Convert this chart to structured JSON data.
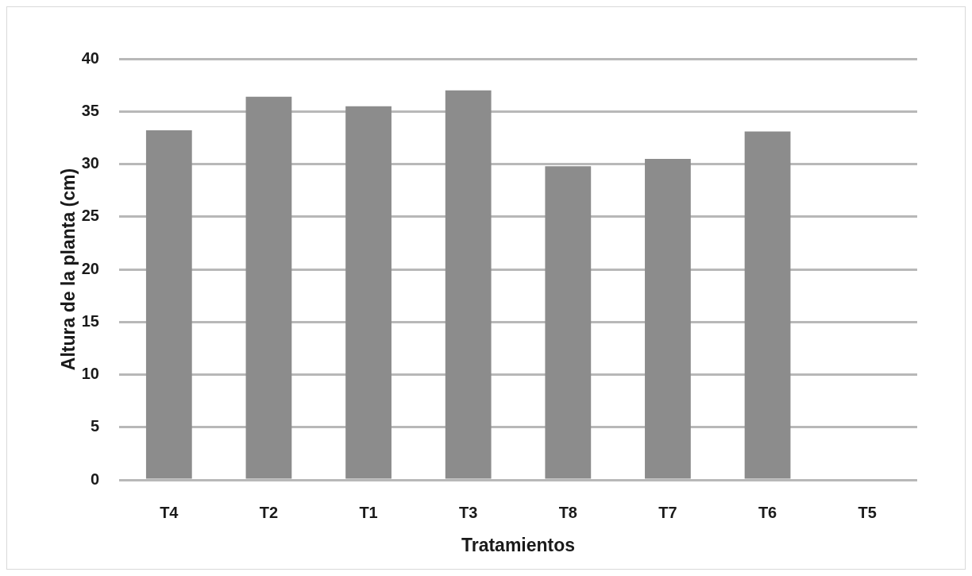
{
  "chart_data": {
    "type": "bar",
    "xlabel": "Tratamientos",
    "ylabel": "Altura de la planta (cm)",
    "categories": [
      "T4",
      "T2",
      "T1",
      "T3",
      "T8",
      "T7",
      "T6",
      "T5"
    ],
    "values": [
      33.2,
      36.4,
      35.5,
      37.0,
      29.8,
      30.5,
      33.1,
      0
    ],
    "color": "#8c8c8c",
    "ylim": [
      0,
      40
    ],
    "yticks": [
      0,
      5,
      10,
      15,
      20,
      25,
      30,
      35,
      40
    ],
    "grid": "y",
    "legend": false
  }
}
